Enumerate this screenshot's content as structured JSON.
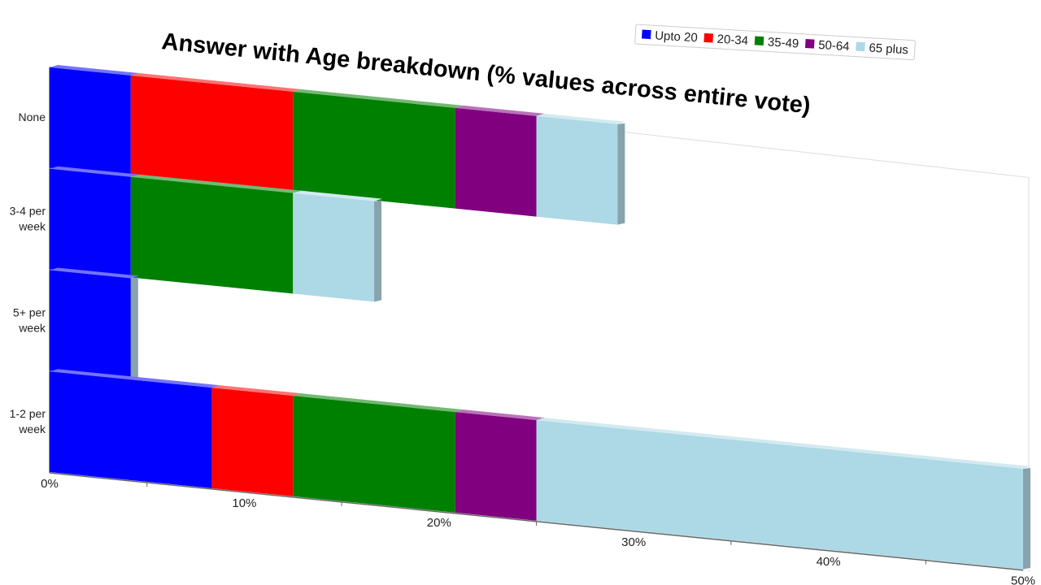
{
  "chart_data": {
    "type": "bar",
    "orientation": "horizontal",
    "stacked": true,
    "title": "Answer with Age breakdown (% values across entire vote)",
    "categories": [
      "None",
      "3-4 per week",
      "5+ per week",
      "1-2 per week"
    ],
    "series": [
      {
        "name": "Upto 20",
        "color": "#0000ff",
        "values": [
          4.17,
          4.17,
          4.17,
          8.33
        ]
      },
      {
        "name": "20-34",
        "color": "#ff0000",
        "values": [
          8.33,
          0,
          0,
          4.17
        ]
      },
      {
        "name": "35-49",
        "color": "#008000",
        "values": [
          8.33,
          8.33,
          0,
          8.33
        ]
      },
      {
        "name": "50-64",
        "color": "#800080",
        "values": [
          4.17,
          0,
          0,
          4.17
        ]
      },
      {
        "name": "65 plus",
        "color": "#add8e6",
        "values": [
          4.17,
          4.17,
          0,
          25.0
        ]
      }
    ],
    "xlim": [
      0,
      50
    ],
    "xticks": [
      "0%",
      "10%",
      "20%",
      "30%",
      "40%",
      "50%"
    ],
    "legend": "top-right",
    "grid": false
  }
}
